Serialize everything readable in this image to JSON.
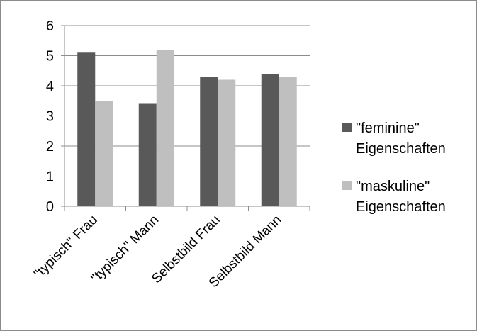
{
  "chart_data": {
    "type": "bar",
    "title": "",
    "xlabel": "",
    "ylabel": "",
    "ylim": [
      0,
      6
    ],
    "yticks": [
      0,
      1,
      2,
      3,
      4,
      5,
      6
    ],
    "grid": true,
    "legend_position": "right",
    "categories": [
      "\"typisch\" Frau",
      "\"typisch\" Mann",
      "Selbstbild Frau",
      "Selbstbild Mann"
    ],
    "series": [
      {
        "name": "\"feminine\" Eigenschaften",
        "name_lines": [
          "\"feminine\"",
          "Eigenschaften"
        ],
        "color": "#595959",
        "values": [
          5.1,
          3.4,
          4.3,
          4.4
        ]
      },
      {
        "name": "\"maskuline\" Eigenschaften",
        "name_lines": [
          "\"maskuline\"",
          "Eigenschaften"
        ],
        "color": "#bfbfbf",
        "values": [
          3.5,
          5.2,
          4.2,
          4.3
        ]
      }
    ]
  }
}
